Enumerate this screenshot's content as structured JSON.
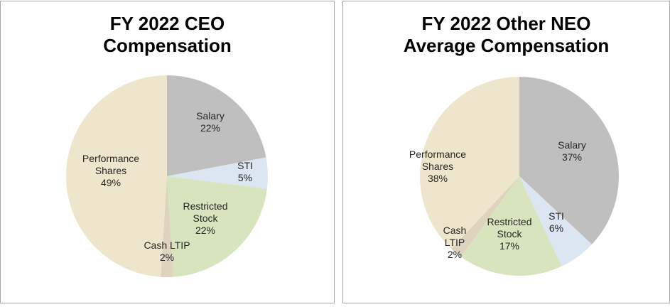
{
  "chart_data": [
    {
      "type": "pie",
      "title_lines": [
        "FY 2022 CEO",
        "Compensation"
      ],
      "start": "12 o'clock, clockwise",
      "slices": [
        {
          "label": "Salary",
          "value": 22,
          "pct": "22%",
          "color": "#bfbfbf"
        },
        {
          "label": "STI",
          "value": 5,
          "pct": "5%",
          "color": "#dce6f2"
        },
        {
          "label": "Restricted Stock",
          "value": 22,
          "pct": "22%",
          "color": "#d7e4bd"
        },
        {
          "label": "Cash LTIP",
          "value": 2,
          "pct": "2%",
          "color": "#ddd3bf"
        },
        {
          "label": "Performance Shares",
          "value": 49,
          "pct": "49%",
          "color": "#eee6cc"
        }
      ]
    },
    {
      "type": "pie",
      "title_lines": [
        "FY 2022 Other NEO",
        "Average Compensation"
      ],
      "start": "12 o'clock, clockwise",
      "slices": [
        {
          "label": "Salary",
          "value": 37,
          "pct": "37%",
          "color": "#bfbfbf"
        },
        {
          "label": "STI",
          "value": 6,
          "pct": "6%",
          "color": "#dce6f2"
        },
        {
          "label": "Restricted Stock",
          "value": 17,
          "pct": "17%",
          "color": "#d7e4bd"
        },
        {
          "label": "Cash LTIP",
          "value": 2,
          "pct": "2%",
          "color": "#ddd3bf"
        },
        {
          "label": "Performance Shares",
          "value": 38,
          "pct": "38%",
          "color": "#eee6cc"
        }
      ]
    }
  ]
}
